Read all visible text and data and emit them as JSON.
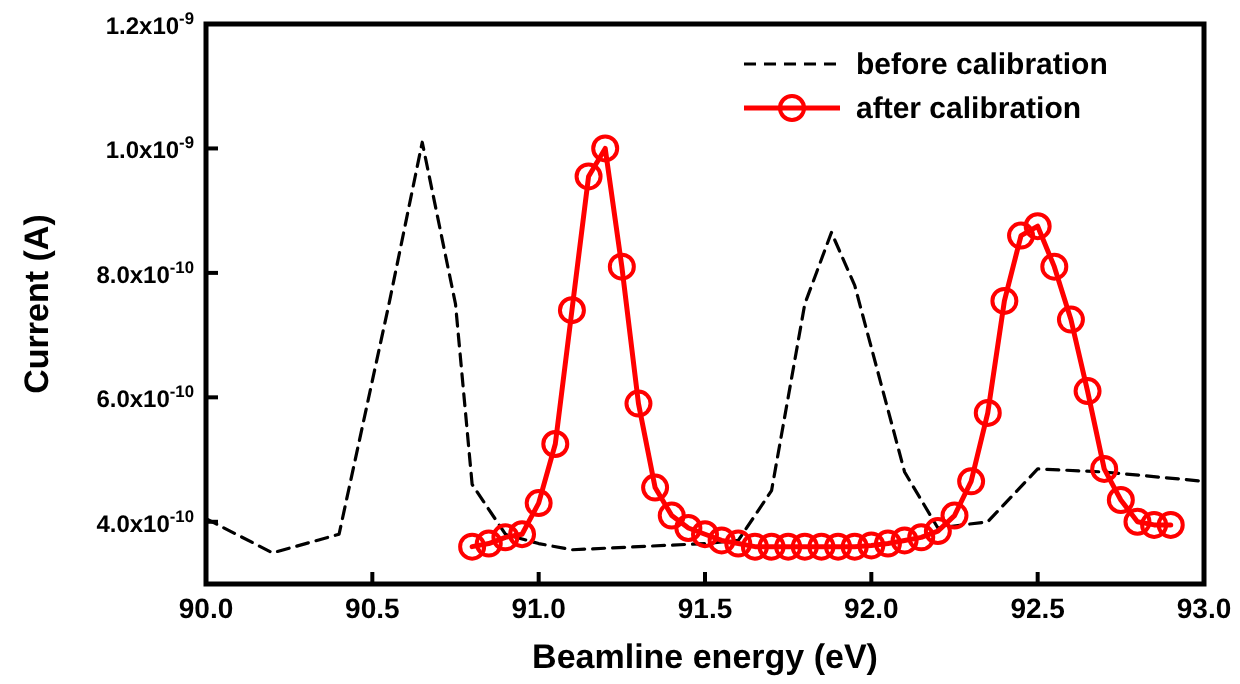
{
  "chart_data": {
    "type": "line",
    "xlabel": "Beamline energy (eV)",
    "ylabel": "Current (A)",
    "xlim": [
      90.0,
      93.0
    ],
    "xticks": [
      {
        "value": 90,
        "label": "90.0"
      },
      90.5,
      {
        "value": 91,
        "label": "91.0"
      },
      91.5,
      {
        "value": 92,
        "label": "92.0"
      },
      92.5,
      {
        "value": 93,
        "label": "93.0"
      }
    ],
    "ylim": [
      3e-10,
      1.2e-09
    ],
    "yticks": [
      {
        "value": 4e-10,
        "label": "4.0x10$^{-10}$"
      },
      {
        "value": 6e-10,
        "label": "6.0x10$^{-10}$"
      },
      {
        "value": 8e-10,
        "label": "8.0x10$^{-10}$"
      },
      {
        "value": 1e-09,
        "label": "1.0x10$^{-9}$"
      },
      {
        "value": 1.2e-09,
        "label": "1.2x10$^{-9}$"
      }
    ],
    "grid": false,
    "legend": "top right",
    "series": [
      {
        "name": "before calibration",
        "color": "#000000",
        "line_style": "dashed",
        "marker": "none",
        "x": [
          90.0,
          90.2,
          90.4,
          90.55,
          90.65,
          90.75,
          90.8,
          90.9,
          91.0,
          91.1,
          91.3,
          91.5,
          91.6,
          91.7,
          91.8,
          91.88,
          91.95,
          92.1,
          92.2,
          92.35,
          92.5,
          92.7,
          93.0
        ],
        "values": [
          4.05e-10,
          3.5e-10,
          3.8e-10,
          7.5e-10,
          1.01e-09,
          7.5e-10,
          4.6e-10,
          3.8e-10,
          3.65e-10,
          3.55e-10,
          3.6e-10,
          3.65e-10,
          3.7e-10,
          4.5e-10,
          7.5e-10,
          8.65e-10,
          7.8e-10,
          4.8e-10,
          3.9e-10,
          4e-10,
          4.85e-10,
          4.8e-10,
          4.65e-10
        ]
      },
      {
        "name": "after calibration",
        "color": "#ff0000",
        "line_style": "solid",
        "marker": "circle",
        "x": [
          90.8,
          90.85,
          90.9,
          90.95,
          91.0,
          91.05,
          91.1,
          91.15,
          91.2,
          91.25,
          91.3,
          91.35,
          91.4,
          91.45,
          91.5,
          91.55,
          91.6,
          91.65,
          91.7,
          91.75,
          91.8,
          91.85,
          91.9,
          91.95,
          92.0,
          92.05,
          92.1,
          92.15,
          92.2,
          92.25,
          92.3,
          92.35,
          92.4,
          92.45,
          92.5,
          92.55,
          92.6,
          92.65,
          92.7,
          92.75,
          92.8,
          92.85,
          92.9
        ],
        "values": [
          3.6e-10,
          3.65e-10,
          3.75e-10,
          3.8e-10,
          4.3e-10,
          5.25e-10,
          7.4e-10,
          9.55e-10,
          1e-09,
          8.1e-10,
          5.9e-10,
          4.55e-10,
          4.1e-10,
          3.9e-10,
          3.8e-10,
          3.7e-10,
          3.65e-10,
          3.6e-10,
          3.6e-10,
          3.6e-10,
          3.6e-10,
          3.6e-10,
          3.6e-10,
          3.6e-10,
          3.62e-10,
          3.65e-10,
          3.7e-10,
          3.75e-10,
          3.85e-10,
          4.1e-10,
          4.65e-10,
          5.75e-10,
          7.55e-10,
          8.6e-10,
          8.75e-10,
          8.1e-10,
          7.25e-10,
          6.1e-10,
          4.85e-10,
          4.35e-10,
          4e-10,
          3.95e-10,
          3.95e-10
        ]
      }
    ]
  }
}
